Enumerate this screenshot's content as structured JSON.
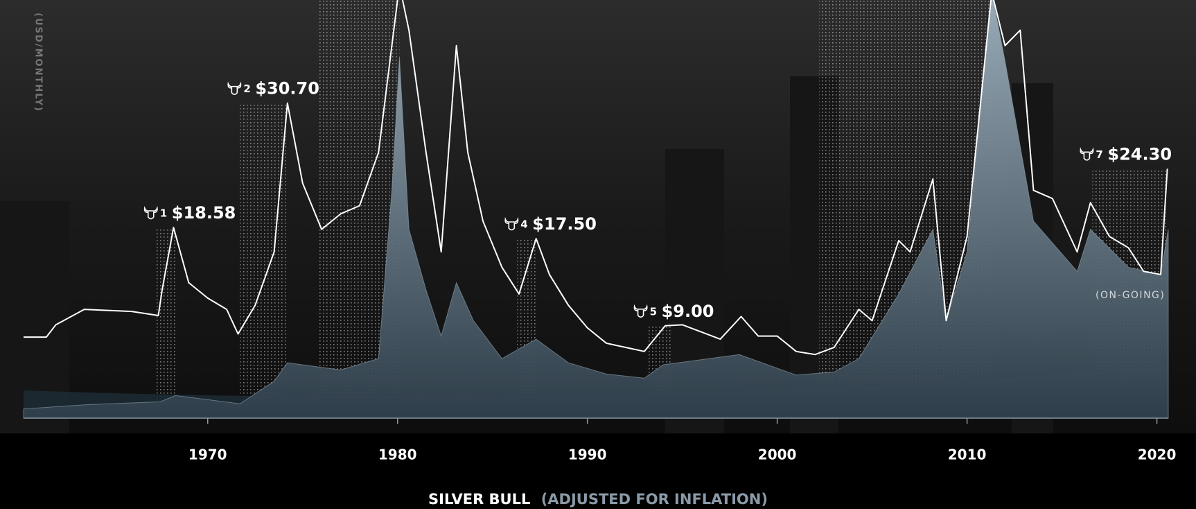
{
  "chart_data": {
    "type": "line",
    "title": "SILVER BULL",
    "subtitle": "(ADJUSTED FOR INFLATION)",
    "y_label": "(USD/MONTHLY)",
    "xlim": [
      1960.3,
      2020.6
    ],
    "xticks": [
      1970,
      1980,
      1990,
      2000,
      2010,
      2020
    ],
    "ylim": [
      0,
      40
    ],
    "series": [
      {
        "color": "#ffffff",
        "style": "line",
        "x": [
          1960.3,
          1961.5,
          1962,
          1963.5,
          1966,
          1967.4,
          1967.6,
          1968.2,
          1969,
          1970,
          1971,
          1971.6,
          1972.5,
          1973.5,
          1974.2,
          1975,
          1976,
          1977,
          1978,
          1979,
          1979.7,
          1980.1,
          1980.6,
          1981.5,
          1982.3,
          1983.1,
          1983.7,
          1984.5,
          1985.5,
          1986.4,
          1987.3,
          1988,
          1989,
          1990,
          1991,
          1992,
          1993,
          1994.1,
          1995,
          1996,
          1997,
          1998.1,
          1999,
          2000,
          2001,
          2002,
          2003,
          2004.3,
          2005,
          2006.4,
          2007,
          2008.2,
          2008.9,
          2010,
          2011.3,
          2012,
          2012.8,
          2013.5,
          2014.5,
          2015.8,
          2016.5,
          2017.5,
          2018.5,
          2019.3,
          2020.2,
          2020.55
        ],
        "values": [
          7.9,
          7.9,
          9.1,
          10.6,
          10.4,
          10.0,
          12.5,
          18.58,
          13.2,
          11.7,
          10.6,
          8.2,
          11.0,
          16.2,
          30.7,
          22.9,
          18.4,
          19.9,
          20.7,
          25.9,
          36.3,
          42.2,
          37.8,
          25.9,
          16.2,
          36.3,
          25.9,
          19.2,
          14.7,
          12.1,
          17.5,
          14.0,
          11.0,
          8.8,
          7.3,
          6.9,
          6.5,
          9.0,
          9.1,
          8.4,
          7.7,
          9.9,
          8.0,
          8.0,
          6.5,
          6.2,
          6.9,
          10.6,
          9.5,
          17.3,
          16.2,
          23.3,
          9.5,
          17.7,
          41.5,
          36.3,
          37.8,
          22.2,
          21.4,
          16.2,
          21.0,
          17.7,
          16.6,
          14.3,
          14.0,
          24.3
        ]
      },
      {
        "color": "#8fa4b1",
        "style": "area",
        "x": [
          1960.3,
          1963.5,
          1967.5,
          1968.3,
          1971.7,
          1973.5,
          1974.2,
          1977,
          1979,
          1979.7,
          1980.1,
          1980.6,
          1981.5,
          1982.3,
          1983.1,
          1984,
          1985.5,
          1987.3,
          1989,
          1991,
          1993,
          1994,
          1998,
          2001,
          2003,
          2004.3,
          2006.4,
          2008.2,
          2008.9,
          2010,
          2011.3,
          2012,
          2013.5,
          2015.8,
          2016.5,
          2018.5,
          2020.2,
          2020.6
        ],
        "values": [
          0.9,
          1.3,
          1.6,
          2.2,
          1.4,
          3.6,
          5.4,
          4.7,
          5.8,
          22.2,
          35.2,
          18.4,
          12.5,
          8.0,
          13.2,
          9.5,
          5.8,
          7.7,
          5.4,
          4.3,
          3.9,
          5.2,
          6.2,
          4.2,
          4.5,
          5.8,
          12.1,
          18.4,
          9.5,
          16.2,
          41.5,
          34.8,
          19.2,
          14.3,
          18.4,
          14.7,
          14.0,
          18.4
        ]
      }
    ],
    "bulls": [
      {
        "number": 1,
        "label": "$18.58",
        "value": 18.58,
        "start": 1967.3,
        "end": 1968.3
      },
      {
        "number": 2,
        "label": "$30.70",
        "value": 30.7,
        "start": 1971.7,
        "end": 1974.2
      },
      {
        "value": 42.2,
        "start": 1975.8,
        "end": 1980.1
      },
      {
        "number": 4,
        "label": "$17.50",
        "value": 17.5,
        "start": 1986.3,
        "end": 1987.3
      },
      {
        "number": 5,
        "label": "$9.00",
        "value": 9.0,
        "start": 1993.1,
        "end": 1994.5
      },
      {
        "value": 41.5,
        "start": 2002.2,
        "end": 2011.4
      },
      {
        "number": 7,
        "label": "$24.30",
        "value": 24.3,
        "start": 2016.6,
        "end": 2020.6,
        "note": "(ON-GOING)"
      }
    ]
  }
}
